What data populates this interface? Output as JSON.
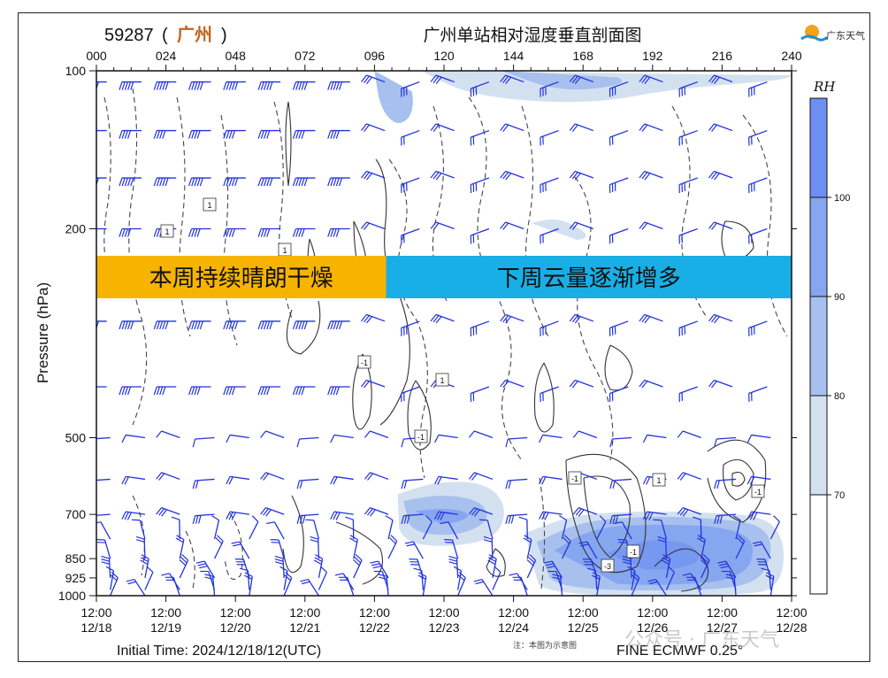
{
  "station": {
    "id": "59287",
    "name": "广州"
  },
  "title": "广州单站相对湿度垂直剖面图",
  "logo_text": "广东天气",
  "banners": [
    {
      "text": "本周持续晴朗干燥",
      "color": "#f6b400"
    },
    {
      "text": "下周云量逐渐增多",
      "color": "#19aee6"
    }
  ],
  "note": "注：本图为示意图",
  "initial_time": "Initial Time: 2024/12/18/12(UTC)",
  "model": "FINE ECMWF 0.25°",
  "watermark": "公众号 · 广东天气",
  "colorbar": {
    "title": "RH",
    "levels": [
      70,
      80,
      90,
      100
    ],
    "colors": [
      "#d3e0f0",
      "#a7c0ee",
      "#86a6f0",
      "#6e8ff2"
    ]
  },
  "chart_data": {
    "type": "heatmap",
    "title": "广州单站相对湿度垂直剖面图",
    "xlabel": "",
    "ylabel": "Pressure (hPa)",
    "x_top_ticks": [
      "000",
      "024",
      "048",
      "072",
      "096",
      "120",
      "144",
      "168",
      "192",
      "216",
      "240"
    ],
    "x_bottom_ticks": [
      {
        "time": "12:00",
        "date": "12/18"
      },
      {
        "time": "12:00",
        "date": "12/19"
      },
      {
        "time": "12:00",
        "date": "12/20"
      },
      {
        "time": "12:00",
        "date": "12/21"
      },
      {
        "time": "12:00",
        "date": "12/22"
      },
      {
        "time": "12:00",
        "date": "12/23"
      },
      {
        "time": "12:00",
        "date": "12/24"
      },
      {
        "time": "12:00",
        "date": "12/25"
      },
      {
        "time": "12:00",
        "date": "12/26"
      },
      {
        "time": "12:00",
        "date": "12/27"
      },
      {
        "time": "12:00",
        "date": "12/28"
      }
    ],
    "xlim": [
      0,
      240
    ],
    "y_ticks": [
      100,
      200,
      500,
      700,
      850,
      925,
      1000
    ],
    "ylim": [
      1000,
      100
    ],
    "y_scale": "log",
    "contour_labels": [
      "1",
      "1",
      "1",
      "-1",
      "1",
      "-1",
      "-1",
      "1",
      "-1",
      "-1",
      "-3"
    ],
    "moist_regions": [
      {
        "x": [
          96,
          110
        ],
        "p": [
          100,
          130
        ],
        "rh": 80
      },
      {
        "x": [
          115,
          240
        ],
        "p": [
          100,
          115
        ],
        "rh": 80
      },
      {
        "x": [
          150,
          170
        ],
        "p": [
          190,
          210
        ],
        "rh": 80
      },
      {
        "x": [
          104,
          140
        ],
        "p": [
          620,
          800
        ],
        "rh": 90
      },
      {
        "x": [
          150,
          235
        ],
        "p": [
          690,
          1000
        ],
        "rh": 90
      }
    ]
  }
}
